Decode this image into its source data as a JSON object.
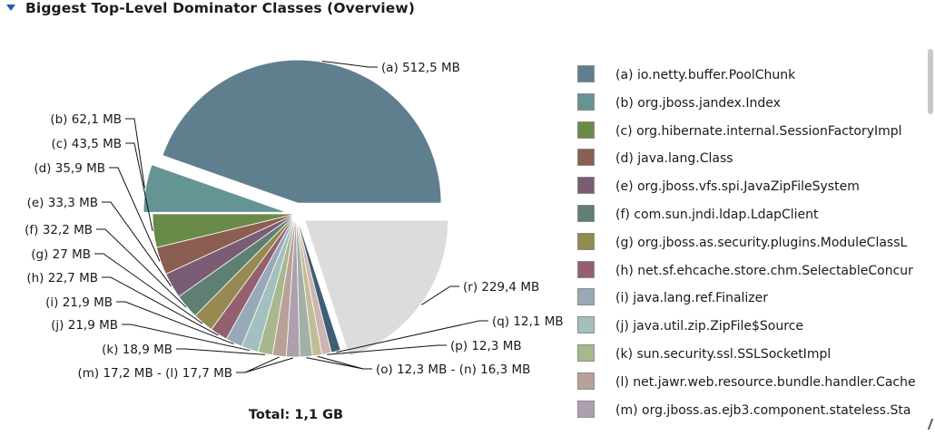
{
  "header": {
    "title": "Biggest Top-Level Dominator Classes (Overview)",
    "toggle_icon": "triangle-down-icon"
  },
  "chart_data": {
    "type": "pie",
    "total_label": "Total: 1,1 GB",
    "slices": [
      {
        "key": "a",
        "label": "(a)  512,5 MB",
        "value": 512.5,
        "color": "#5f7f8f"
      },
      {
        "key": "b",
        "label": "(b)  62,1 MB",
        "value": 62.1,
        "color": "#659494"
      },
      {
        "key": "c",
        "label": "(c)  43,5 MB",
        "value": 43.5,
        "color": "#6a8b48"
      },
      {
        "key": "d",
        "label": "(d)  35,9 MB",
        "value": 35.9,
        "color": "#8a5e50"
      },
      {
        "key": "e",
        "label": "(e)  33,3 MB",
        "value": 33.3,
        "color": "#7a5c74"
      },
      {
        "key": "f",
        "label": "(f)  32,2 MB",
        "value": 32.2,
        "color": "#5f7f73"
      },
      {
        "key": "g",
        "label": "(g)  27 MB",
        "value": 27,
        "color": "#958a4f"
      },
      {
        "key": "h",
        "label": "(h)  22,7 MB",
        "value": 22.7,
        "color": "#946070"
      },
      {
        "key": "i",
        "label": "(i)  21,9 MB",
        "value": 21.9,
        "color": "#98aab8"
      },
      {
        "key": "j",
        "label": "(j)  21,9 MB",
        "value": 21.9,
        "color": "#a3bfbf"
      },
      {
        "key": "k",
        "label": "(k)  18,9 MB",
        "value": 18.9,
        "color": "#a7b88f"
      },
      {
        "key": "l",
        "label": "",
        "value": 17.7,
        "color": "#b8a197"
      },
      {
        "key": "m",
        "label": "(m)  17,2 MB - (l)  17,7 MB",
        "value": 17.2,
        "color": "#ae9fae"
      },
      {
        "key": "n",
        "label": "",
        "value": 16.3,
        "color": "#a3b0a8"
      },
      {
        "key": "o",
        "label": "(o)  12,3 MB - (n)  16,3 MB",
        "value": 12.3,
        "color": "#c3bc96"
      },
      {
        "key": "p",
        "label": "(p)  12,3 MB",
        "value": 12.3,
        "color": "#cfb4b4"
      },
      {
        "key": "q",
        "label": "(q)  12,1 MB",
        "value": 12.1,
        "color": "#3f5d73"
      },
      {
        "key": "r",
        "label": "(r)  229,4 MB",
        "value": 229.4,
        "color": "#dcdcdc"
      }
    ]
  },
  "legend": [
    {
      "label": "(a)  io.netty.buffer.PoolChunk",
      "color": "#5f7f8f"
    },
    {
      "label": "(b)  org.jboss.jandex.Index",
      "color": "#659494"
    },
    {
      "label": "(c)  org.hibernate.internal.SessionFactoryImpl",
      "color": "#6a8b48"
    },
    {
      "label": "(d)  java.lang.Class",
      "color": "#8a5e50"
    },
    {
      "label": "(e)  org.jboss.vfs.spi.JavaZipFileSystem",
      "color": "#7a5c74"
    },
    {
      "label": "(f)  com.sun.jndi.ldap.LdapClient",
      "color": "#5f7f73"
    },
    {
      "label": "(g)  org.jboss.as.security.plugins.ModuleClassL",
      "color": "#958a4f"
    },
    {
      "label": "(h)  net.sf.ehcache.store.chm.SelectableConcur",
      "color": "#946070"
    },
    {
      "label": "(i)  java.lang.ref.Finalizer",
      "color": "#98aab8"
    },
    {
      "label": "(j)  java.util.zip.ZipFile$Source",
      "color": "#a3bfbf"
    },
    {
      "label": "(k)  sun.security.ssl.SSLSocketImpl",
      "color": "#a7b88f"
    },
    {
      "label": "(l)  net.jawr.web.resource.bundle.handler.Cache",
      "color": "#b8a197"
    },
    {
      "label": "(m)  org.jboss.as.ejb3.component.stateless.Sta",
      "color": "#ae9fae"
    }
  ]
}
